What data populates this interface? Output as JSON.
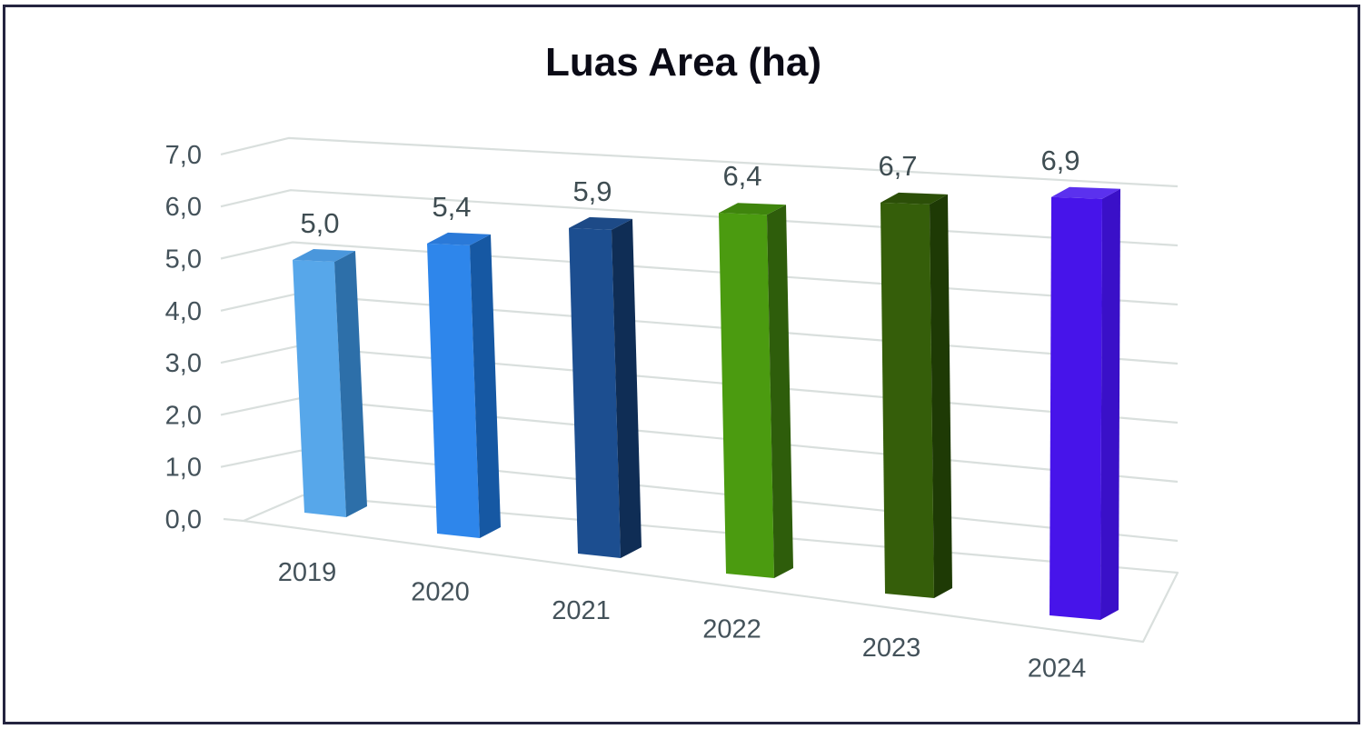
{
  "title": "Luas Area (ha)",
  "chart_data": {
    "type": "bar",
    "projection": "3d-column-perspective",
    "title": "Luas Area (ha)",
    "categories": [
      "2019",
      "2020",
      "2021",
      "2022",
      "2023",
      "2024"
    ],
    "values": [
      5.0,
      5.4,
      5.9,
      6.4,
      6.7,
      6.9
    ],
    "value_labels": [
      "5,0",
      "5,4",
      "5,9",
      "6,4",
      "6,7",
      "6,9"
    ],
    "xlabel": "",
    "ylabel": "",
    "ylim": [
      0,
      7
    ],
    "ytick_interval": 1.0,
    "ytick_labels": [
      "0,0",
      "1,0",
      "2,0",
      "3,0",
      "4,0",
      "5,0",
      "6,0",
      "7,0"
    ],
    "decimal_separator": ",",
    "grid": true,
    "legend": false,
    "series": [
      {
        "name": "Luas Area (ha)",
        "points": [
          {
            "category": "2019",
            "value": 5.0,
            "label": "5,0",
            "front": "#57A7EA",
            "side": "#2D6FA9",
            "top": "#4A97DC"
          },
          {
            "category": "2020",
            "value": 5.4,
            "label": "5,4",
            "front": "#2E86EB",
            "side": "#1658A3",
            "top": "#2A79D8"
          },
          {
            "category": "2021",
            "value": 5.9,
            "label": "5,9",
            "front": "#1C4E90",
            "side": "#0F2D55",
            "top": "#1D4A87"
          },
          {
            "category": "2022",
            "value": 6.4,
            "label": "6,4",
            "front": "#4B9B10",
            "side": "#2E5D0B",
            "top": "#3F850D"
          },
          {
            "category": "2023",
            "value": 6.7,
            "label": "6,7",
            "front": "#355E0A",
            "side": "#1E3A05",
            "top": "#2C4F08"
          },
          {
            "category": "2024",
            "value": 6.9,
            "label": "6,9",
            "front": "#4714EA",
            "side": "#3A10C8",
            "top": "#5B31EE"
          }
        ]
      }
    ]
  },
  "style": {
    "background": "#FFFFFF",
    "border_color": "#242440",
    "grid_color": "#D9DFDD",
    "axis_text_color": "#44525A",
    "data_label_color": "#3F4D52",
    "title_color": "#0B0B16"
  }
}
